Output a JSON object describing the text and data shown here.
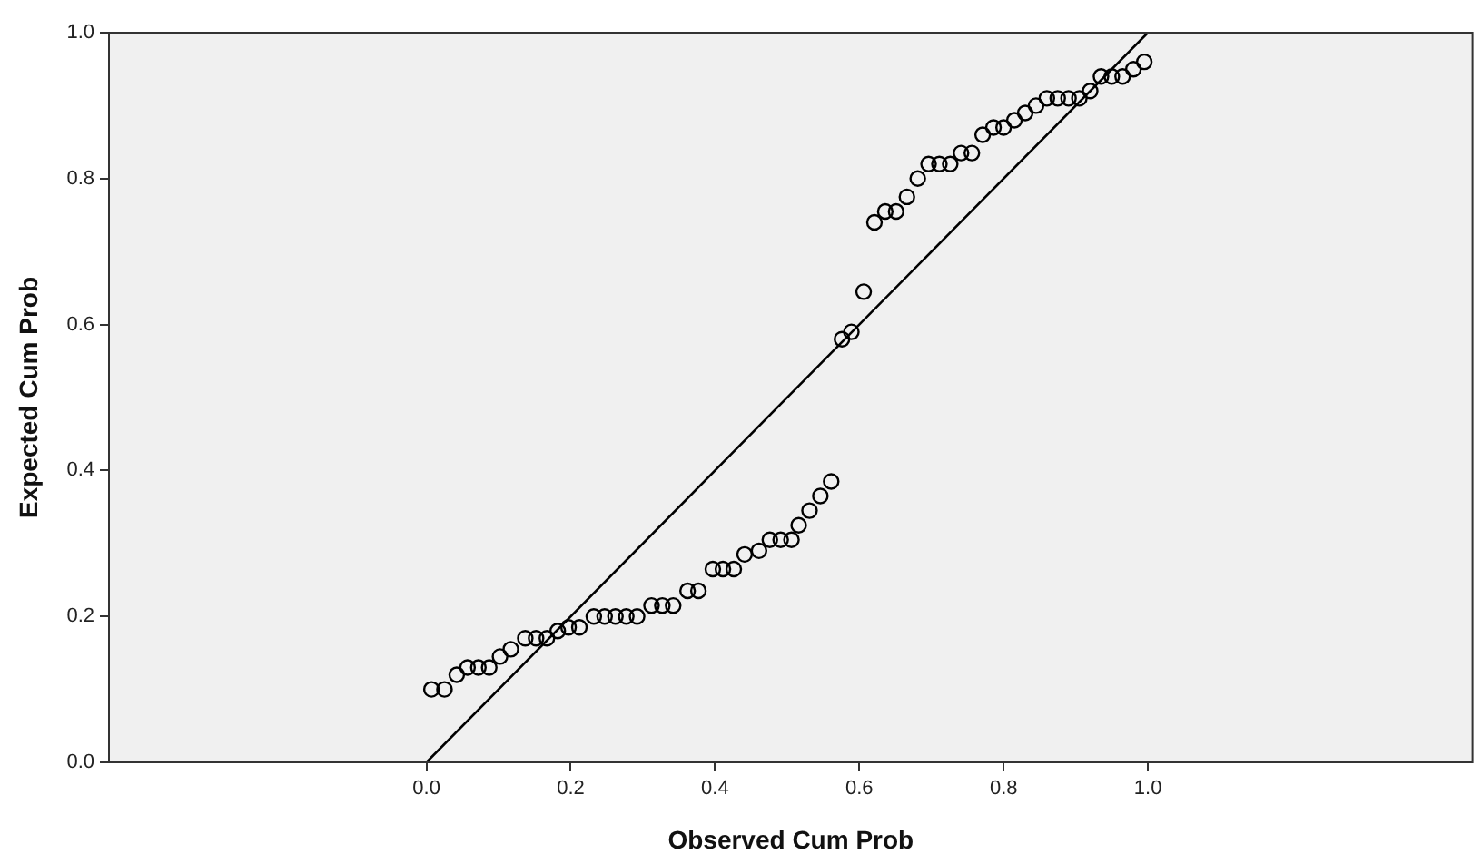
{
  "chart_data": {
    "type": "scatter",
    "xlabel": "Observed Cum Prob",
    "ylabel": "Expected Cum Prob",
    "xlim": [
      -0.44,
      1.45
    ],
    "ylim": [
      0,
      1
    ],
    "xticks": [
      {
        "value": 0,
        "label": "0.0"
      },
      {
        "value": 0.2,
        "label": "0.2"
      },
      {
        "value": 0.4,
        "label": "0.4"
      },
      {
        "value": 0.6,
        "label": "0.6"
      },
      {
        "value": 0.8,
        "label": "0.8"
      },
      {
        "value": 1,
        "label": "1.0"
      }
    ],
    "yticks": [
      {
        "value": 0,
        "label": "0.0"
      },
      {
        "value": 0.2,
        "label": "0.2"
      },
      {
        "value": 0.4,
        "label": "0.4"
      },
      {
        "value": 0.6,
        "label": "0.6"
      },
      {
        "value": 0.8,
        "label": "0.8"
      },
      {
        "value": 1,
        "label": "1.0"
      }
    ],
    "grid": false,
    "legend": false,
    "marker": "circle",
    "series": [
      {
        "type": "scatter",
        "color": "#000000",
        "x": [
          0.007,
          0.025,
          0.042,
          0.057,
          0.072,
          0.087,
          0.102,
          0.117,
          0.137,
          0.152,
          0.167,
          0.182,
          0.197,
          0.212,
          0.232,
          0.247,
          0.262,
          0.277,
          0.292,
          0.312,
          0.327,
          0.342,
          0.362,
          0.377,
          0.397,
          0.411,
          0.426,
          0.441,
          0.461,
          0.476,
          0.491,
          0.506,
          0.516,
          0.531,
          0.546,
          0.561,
          0.576,
          0.589,
          0.606,
          0.621,
          0.636,
          0.651,
          0.666,
          0.681,
          0.696,
          0.711,
          0.726,
          0.741,
          0.756,
          0.771,
          0.786,
          0.8,
          0.815,
          0.83,
          0.845,
          0.86,
          0.875,
          0.89,
          0.905,
          0.92,
          0.935,
          0.95,
          0.965,
          0.98,
          0.995
        ],
        "values": [
          0.1,
          0.1,
          0.12,
          0.13,
          0.13,
          0.13,
          0.145,
          0.155,
          0.17,
          0.17,
          0.17,
          0.18,
          0.185,
          0.185,
          0.2,
          0.2,
          0.2,
          0.2,
          0.2,
          0.215,
          0.215,
          0.215,
          0.235,
          0.235,
          0.265,
          0.265,
          0.265,
          0.285,
          0.29,
          0.305,
          0.305,
          0.305,
          0.325,
          0.345,
          0.365,
          0.385,
          0.58,
          0.59,
          0.645,
          0.74,
          0.755,
          0.755,
          0.775,
          0.8,
          0.82,
          0.82,
          0.82,
          0.835,
          0.835,
          0.86,
          0.87,
          0.87,
          0.88,
          0.89,
          0.9,
          0.91,
          0.91,
          0.91,
          0.91,
          0.92,
          0.94,
          0.94,
          0.94,
          0.95,
          0.96
        ]
      },
      {
        "type": "line",
        "color": "#000000",
        "x": [
          0,
          1
        ],
        "values": [
          0,
          1
        ],
        "marker": "none",
        "line_style": "solid"
      }
    ]
  }
}
